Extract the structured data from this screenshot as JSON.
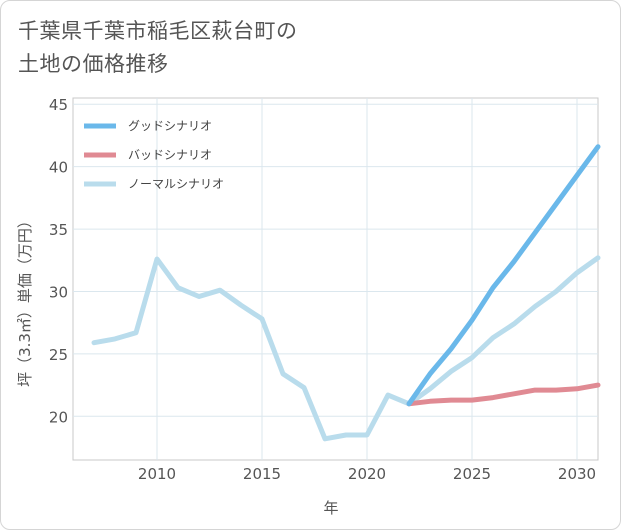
{
  "title_lines": [
    "千葉県千葉市稲毛区萩台町の",
    "土地の価格推移"
  ],
  "chart_data": {
    "type": "line",
    "xlabel": "年",
    "ylabel": "坪（3.3㎡）単価（万円）",
    "xlim": [
      2006,
      2031
    ],
    "ylim": [
      16.5,
      45.5
    ],
    "xticks": [
      2010,
      2015,
      2020,
      2025,
      2030
    ],
    "yticks": [
      20,
      25,
      30,
      35,
      40,
      45
    ],
    "grid": true,
    "legend_position": "top-left",
    "series": [
      {
        "name": "グッドシナリオ",
        "color": "#6ab8ea",
        "x": [
          2022,
          2023,
          2024,
          2025,
          2026,
          2027,
          2028,
          2029,
          2030,
          2031
        ],
        "values": [
          21.0,
          23.4,
          25.4,
          27.7,
          30.3,
          32.4,
          34.7,
          37.0,
          39.3,
          41.6
        ]
      },
      {
        "name": "バッドシナリオ",
        "color": "#e08a93",
        "x": [
          2022,
          2023,
          2024,
          2025,
          2026,
          2027,
          2028,
          2029,
          2030,
          2031
        ],
        "values": [
          21.0,
          21.2,
          21.3,
          21.3,
          21.5,
          21.8,
          22.1,
          22.1,
          22.2,
          22.5
        ]
      },
      {
        "name": "ノーマルシナリオ",
        "color": "#b9dcec",
        "x": [
          2007,
          2008,
          2009,
          2010,
          2011,
          2012,
          2013,
          2014,
          2015,
          2016,
          2017,
          2018,
          2019,
          2020,
          2021,
          2022,
          2023,
          2024,
          2025,
          2026,
          2027,
          2028,
          2029,
          2030,
          2031
        ],
        "values": [
          25.9,
          26.2,
          26.7,
          32.6,
          30.3,
          29.6,
          30.1,
          28.9,
          27.8,
          23.4,
          22.3,
          18.2,
          18.5,
          18.5,
          21.7,
          21.0,
          22.2,
          23.6,
          24.7,
          26.3,
          27.4,
          28.8,
          30.0,
          31.5,
          32.7
        ]
      }
    ]
  }
}
